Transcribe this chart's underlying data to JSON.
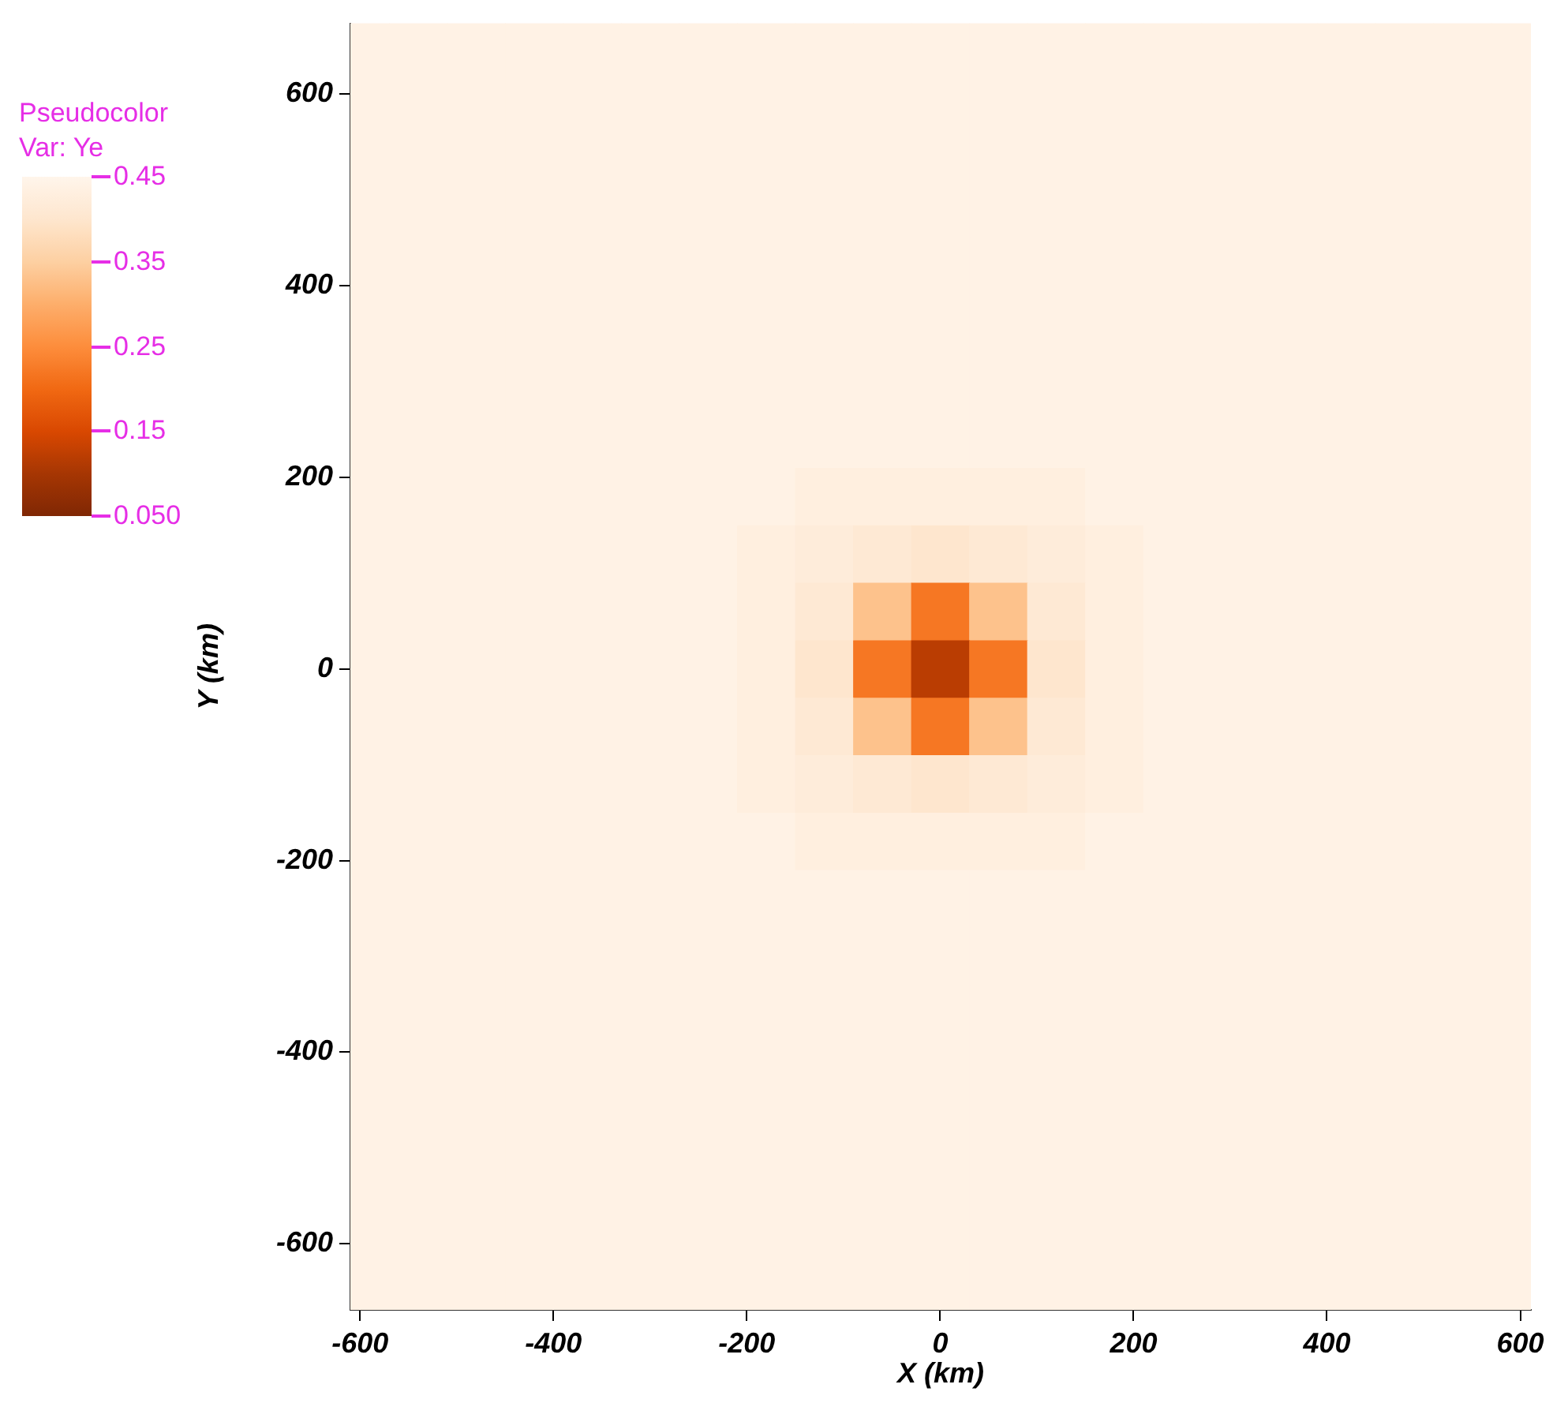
{
  "chart_data": {
    "type": "heatmap",
    "xlabel": "X (km)",
    "ylabel": "Y (km)",
    "legend_title": "Pseudocolor",
    "clabel": "Var: Ye",
    "x": [
      -600,
      -540,
      -480,
      -420,
      -360,
      -300,
      -240,
      -180,
      -120,
      -60,
      0,
      60,
      120,
      180,
      240,
      300,
      360,
      420,
      480,
      540,
      600
    ],
    "y": [
      660,
      600,
      540,
      480,
      420,
      360,
      300,
      240,
      180,
      120,
      60,
      0,
      -60,
      -120,
      -180,
      -240,
      -300,
      -360,
      -420,
      -480,
      -540,
      -600,
      -660
    ],
    "cells": [
      [
        0.44,
        0.44,
        0.44,
        0.44,
        0.44,
        0.44,
        0.44,
        0.44,
        0.44,
        0.44,
        0.44,
        0.44,
        0.44,
        0.44,
        0.44,
        0.44,
        0.44,
        0.44,
        0.44,
        0.44,
        0.44
      ],
      [
        0.44,
        0.44,
        0.44,
        0.44,
        0.44,
        0.44,
        0.44,
        0.44,
        0.44,
        0.44,
        0.44,
        0.44,
        0.44,
        0.44,
        0.44,
        0.44,
        0.44,
        0.44,
        0.44,
        0.44,
        0.44
      ],
      [
        0.44,
        0.44,
        0.44,
        0.44,
        0.44,
        0.44,
        0.44,
        0.44,
        0.44,
        0.44,
        0.44,
        0.44,
        0.44,
        0.44,
        0.44,
        0.44,
        0.44,
        0.44,
        0.44,
        0.44,
        0.44
      ],
      [
        0.44,
        0.44,
        0.44,
        0.44,
        0.44,
        0.44,
        0.44,
        0.44,
        0.44,
        0.44,
        0.44,
        0.44,
        0.44,
        0.44,
        0.44,
        0.44,
        0.44,
        0.44,
        0.44,
        0.44,
        0.44
      ],
      [
        0.44,
        0.44,
        0.44,
        0.44,
        0.44,
        0.44,
        0.44,
        0.44,
        0.44,
        0.44,
        0.44,
        0.44,
        0.44,
        0.44,
        0.44,
        0.44,
        0.44,
        0.44,
        0.44,
        0.44,
        0.44
      ],
      [
        0.44,
        0.44,
        0.44,
        0.44,
        0.44,
        0.44,
        0.44,
        0.44,
        0.44,
        0.44,
        0.44,
        0.44,
        0.44,
        0.44,
        0.44,
        0.44,
        0.44,
        0.44,
        0.44,
        0.44,
        0.44
      ],
      [
        0.44,
        0.44,
        0.44,
        0.44,
        0.44,
        0.44,
        0.44,
        0.44,
        0.44,
        0.44,
        0.44,
        0.44,
        0.44,
        0.44,
        0.44,
        0.44,
        0.44,
        0.44,
        0.44,
        0.44,
        0.44
      ],
      [
        0.44,
        0.44,
        0.44,
        0.44,
        0.44,
        0.44,
        0.44,
        0.44,
        0.44,
        0.44,
        0.44,
        0.44,
        0.44,
        0.44,
        0.44,
        0.44,
        0.44,
        0.44,
        0.44,
        0.44,
        0.44
      ],
      [
        0.44,
        0.44,
        0.44,
        0.44,
        0.44,
        0.44,
        0.44,
        0.44,
        0.43,
        0.43,
        0.43,
        0.43,
        0.43,
        0.44,
        0.44,
        0.44,
        0.44,
        0.44,
        0.44,
        0.44,
        0.44
      ],
      [
        0.44,
        0.44,
        0.44,
        0.44,
        0.44,
        0.44,
        0.44,
        0.43,
        0.42,
        0.41,
        0.4,
        0.41,
        0.42,
        0.43,
        0.44,
        0.44,
        0.44,
        0.44,
        0.44,
        0.44,
        0.44
      ],
      [
        0.44,
        0.44,
        0.44,
        0.44,
        0.44,
        0.44,
        0.44,
        0.43,
        0.41,
        0.33,
        0.22,
        0.33,
        0.41,
        0.43,
        0.44,
        0.44,
        0.44,
        0.44,
        0.44,
        0.44,
        0.44
      ],
      [
        0.44,
        0.44,
        0.44,
        0.44,
        0.44,
        0.44,
        0.44,
        0.43,
        0.4,
        0.22,
        0.12,
        0.22,
        0.4,
        0.43,
        0.44,
        0.44,
        0.44,
        0.44,
        0.44,
        0.44,
        0.44
      ],
      [
        0.44,
        0.44,
        0.44,
        0.44,
        0.44,
        0.44,
        0.44,
        0.43,
        0.41,
        0.33,
        0.22,
        0.33,
        0.41,
        0.43,
        0.44,
        0.44,
        0.44,
        0.44,
        0.44,
        0.44,
        0.44
      ],
      [
        0.44,
        0.44,
        0.44,
        0.44,
        0.44,
        0.44,
        0.44,
        0.43,
        0.42,
        0.41,
        0.4,
        0.41,
        0.42,
        0.43,
        0.44,
        0.44,
        0.44,
        0.44,
        0.44,
        0.44,
        0.44
      ],
      [
        0.44,
        0.44,
        0.44,
        0.44,
        0.44,
        0.44,
        0.44,
        0.44,
        0.43,
        0.43,
        0.43,
        0.43,
        0.43,
        0.44,
        0.44,
        0.44,
        0.44,
        0.44,
        0.44,
        0.44,
        0.44
      ],
      [
        0.44,
        0.44,
        0.44,
        0.44,
        0.44,
        0.44,
        0.44,
        0.44,
        0.44,
        0.44,
        0.44,
        0.44,
        0.44,
        0.44,
        0.44,
        0.44,
        0.44,
        0.44,
        0.44,
        0.44,
        0.44
      ],
      [
        0.44,
        0.44,
        0.44,
        0.44,
        0.44,
        0.44,
        0.44,
        0.44,
        0.44,
        0.44,
        0.44,
        0.44,
        0.44,
        0.44,
        0.44,
        0.44,
        0.44,
        0.44,
        0.44,
        0.44,
        0.44
      ],
      [
        0.44,
        0.44,
        0.44,
        0.44,
        0.44,
        0.44,
        0.44,
        0.44,
        0.44,
        0.44,
        0.44,
        0.44,
        0.44,
        0.44,
        0.44,
        0.44,
        0.44,
        0.44,
        0.44,
        0.44,
        0.44
      ],
      [
        0.44,
        0.44,
        0.44,
        0.44,
        0.44,
        0.44,
        0.44,
        0.44,
        0.44,
        0.44,
        0.44,
        0.44,
        0.44,
        0.44,
        0.44,
        0.44,
        0.44,
        0.44,
        0.44,
        0.44,
        0.44
      ],
      [
        0.44,
        0.44,
        0.44,
        0.44,
        0.44,
        0.44,
        0.44,
        0.44,
        0.44,
        0.44,
        0.44,
        0.44,
        0.44,
        0.44,
        0.44,
        0.44,
        0.44,
        0.44,
        0.44,
        0.44,
        0.44
      ],
      [
        0.44,
        0.44,
        0.44,
        0.44,
        0.44,
        0.44,
        0.44,
        0.44,
        0.44,
        0.44,
        0.44,
        0.44,
        0.44,
        0.44,
        0.44,
        0.44,
        0.44,
        0.44,
        0.44,
        0.44,
        0.44
      ],
      [
        0.44,
        0.44,
        0.44,
        0.44,
        0.44,
        0.44,
        0.44,
        0.44,
        0.44,
        0.44,
        0.44,
        0.44,
        0.44,
        0.44,
        0.44,
        0.44,
        0.44,
        0.44,
        0.44,
        0.44,
        0.44
      ],
      [
        0.44,
        0.44,
        0.44,
        0.44,
        0.44,
        0.44,
        0.44,
        0.44,
        0.44,
        0.44,
        0.44,
        0.44,
        0.44,
        0.44,
        0.44,
        0.44,
        0.44,
        0.44,
        0.44,
        0.44,
        0.44
      ]
    ],
    "clim": [
      0.05,
      0.45
    ],
    "cticks": [
      {
        "value": 0.05,
        "label": "0.050"
      },
      0.15,
      0.25,
      0.35,
      0.45
    ],
    "xlim": [
      -610,
      611
    ],
    "xticks": [
      -600,
      -400,
      -200,
      0,
      200,
      400,
      600
    ],
    "ylim": [
      -669,
      674
    ],
    "yticks": [
      -600,
      -400,
      -200,
      0,
      200,
      400,
      600
    ]
  }
}
